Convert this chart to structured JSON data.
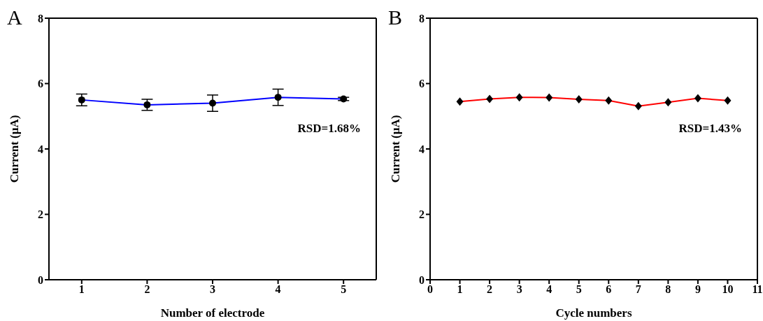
{
  "chart_data": [
    {
      "type": "line",
      "title": "A",
      "xlabel": "Number of electrode",
      "ylabel": "Current (μA)",
      "x": [
        1,
        2,
        3,
        4,
        5
      ],
      "xlim": [
        0.5,
        5.5
      ],
      "xticks": [
        1,
        2,
        3,
        4,
        5
      ],
      "ylim": [
        0,
        8
      ],
      "yticks": [
        0,
        2,
        4,
        6,
        8
      ],
      "series": [
        {
          "color": "#0000ff",
          "values": [
            5.5,
            5.35,
            5.4,
            5.58,
            5.53
          ],
          "errors": [
            0.18,
            0.17,
            0.25,
            0.25,
            0.05
          ]
        }
      ],
      "marker": "circle",
      "grid": false,
      "legend": false,
      "annotations": [
        "RSD=1.68%"
      ]
    },
    {
      "type": "line",
      "title": "B",
      "xlabel": "Cycle numbers",
      "ylabel": "Current (μA)",
      "x": [
        1,
        2,
        3,
        4,
        5,
        6,
        7,
        8,
        9,
        10
      ],
      "xlim": [
        0,
        11
      ],
      "xticks": [
        0,
        1,
        2,
        3,
        4,
        5,
        6,
        7,
        8,
        9,
        10,
        11
      ],
      "ylim": [
        0,
        8
      ],
      "yticks": [
        0,
        2,
        4,
        6,
        8
      ],
      "series": [
        {
          "color": "#ff0000",
          "values": [
            5.45,
            5.53,
            5.58,
            5.57,
            5.52,
            5.48,
            5.31,
            5.43,
            5.55,
            5.48
          ]
        }
      ],
      "marker": "diamond",
      "grid": false,
      "legend": false,
      "annotations": [
        "RSD=1.43%"
      ]
    }
  ]
}
